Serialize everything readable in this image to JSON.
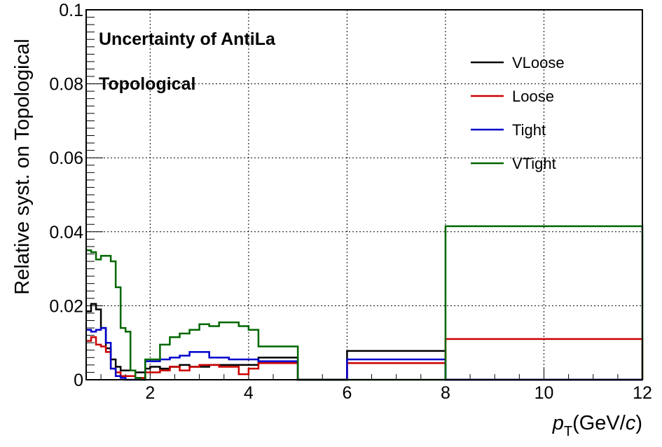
{
  "chart_data": {
    "type": "line",
    "step": true,
    "xlabel_main": "p",
    "xlabel_sub": "T",
    "xlabel_unit_pre": "(GeV/",
    "xlabel_unit_var": "c",
    "xlabel_unit_post": ")",
    "ylabel": "Relative syst. on Topological",
    "xlim": [
      0.7,
      12
    ],
    "ylim": [
      0,
      0.1
    ],
    "x_ticks": [
      2,
      4,
      6,
      8,
      10,
      12
    ],
    "x_tick_labels": [
      "2",
      "4",
      "6",
      "8",
      "10",
      "12"
    ],
    "y_ticks": [
      0,
      0.02,
      0.04,
      0.06,
      0.08,
      0.1
    ],
    "y_tick_labels": [
      "0",
      "0.02",
      "0.04",
      "0.06",
      "0.08",
      "0.1"
    ],
    "grid": true,
    "legend_position": "top-right",
    "annotations": [
      "Uncertainty of AntiLa",
      "Topological"
    ],
    "bin_edges": [
      0.7,
      0.8,
      0.9,
      1.0,
      1.1,
      1.2,
      1.3,
      1.4,
      1.5,
      1.6,
      1.7,
      1.8,
      1.9,
      2.0,
      2.2,
      2.4,
      2.6,
      2.8,
      3.0,
      3.2,
      3.4,
      3.6,
      3.8,
      4.0,
      4.2,
      5.0,
      6.0,
      8.0,
      12.0
    ],
    "series": [
      {
        "name": "VLoose",
        "color": "#000000",
        "values": [
          0.0185,
          0.0205,
          0.019,
          0.014,
          0.0085,
          0.0055,
          0.0035,
          0.0025,
          0.0025,
          0.0025,
          0.002,
          0.002,
          0.003,
          0.0035,
          0.003,
          0.0035,
          0.004,
          0.0035,
          0.0035,
          0.004,
          0.004,
          0.004,
          0.004,
          0.004,
          0.006,
          0.0,
          0.0078,
          0.0,
          0.0
        ]
      },
      {
        "name": "Loose",
        "color": "#cc0000",
        "values": [
          0.0105,
          0.0115,
          0.0095,
          0.009,
          0.0075,
          0.003,
          0.002,
          0.001,
          0.001,
          0.001,
          0.0005,
          0.0005,
          0.002,
          0.002,
          0.0025,
          0.0035,
          0.0025,
          0.0035,
          0.004,
          0.004,
          0.0035,
          0.0035,
          0.0015,
          0.003,
          0.0045,
          0.0,
          0.0045,
          0.011,
          0.0
        ]
      },
      {
        "name": "Tight",
        "color": "#0000cc",
        "values": [
          0.0135,
          0.013,
          0.0135,
          0.014,
          0.01,
          0.003,
          0.001,
          0.0005,
          0.0,
          0.0,
          0.0,
          0.0,
          0.005,
          0.005,
          0.0055,
          0.006,
          0.0065,
          0.0075,
          0.0075,
          0.006,
          0.006,
          0.0055,
          0.0055,
          0.0055,
          0.005,
          0.0,
          0.0055,
          0.0,
          0.0
        ]
      },
      {
        "name": "VTight",
        "color": "#006600",
        "values": [
          0.035,
          0.0345,
          0.0325,
          0.0335,
          0.0335,
          0.032,
          0.025,
          0.014,
          0.013,
          0.0025,
          0.0005,
          0.0,
          0.0055,
          0.0055,
          0.0095,
          0.0115,
          0.0125,
          0.0135,
          0.015,
          0.0145,
          0.0155,
          0.0155,
          0.0145,
          0.0135,
          0.009,
          0.0,
          0.0,
          0.0415,
          0.0
        ]
      }
    ]
  }
}
